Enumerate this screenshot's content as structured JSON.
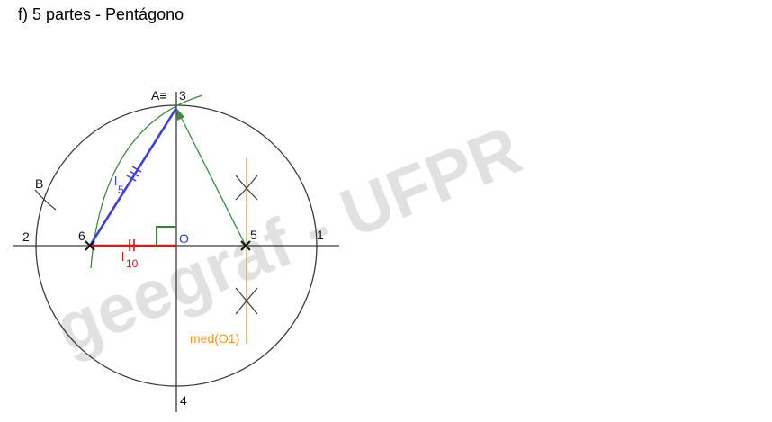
{
  "page": {
    "title": "f) 5 partes - Pentágono"
  },
  "watermark": {
    "text": "geegraf - UFPR",
    "color": "#d9d9d9"
  },
  "labels": {
    "point_a": "A≡",
    "point_3": "3",
    "point_b": "B",
    "point_2": "2",
    "point_6": "6",
    "center_o": "O",
    "point_5": "5",
    "point_1": "1",
    "point_4": "4",
    "l5_main": "l",
    "l5_sub": "5",
    "l10_main": "l",
    "l10_sub": "10",
    "bisector": "med(O1)"
  },
  "colors": {
    "circle": "#3a3a3a",
    "axes": "#3a3a3a",
    "arc": "#3f8a3f",
    "l5_side": "#3d3df0",
    "l10_segment": "#e01515",
    "bisector": "#f0961e",
    "right_angle": "#2e8b2e",
    "center_label": "#1f3fd6"
  }
}
